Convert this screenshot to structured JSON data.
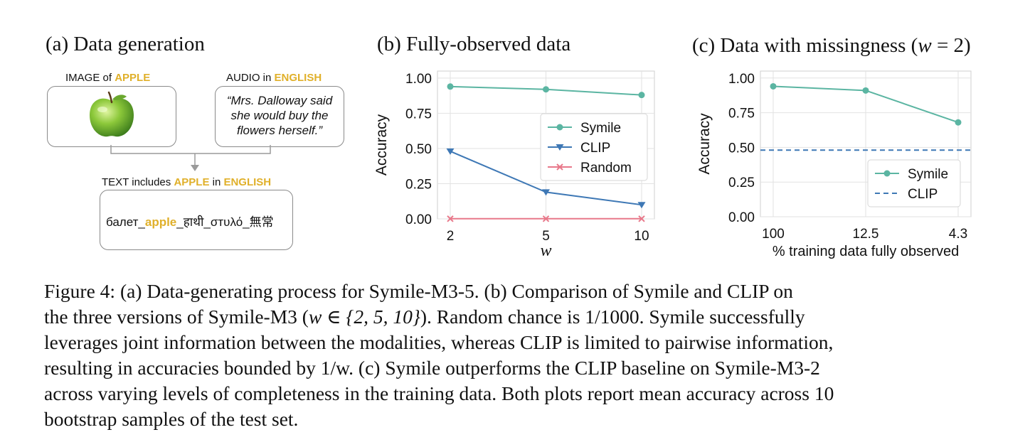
{
  "panel_a": {
    "title": "(a) Data generation",
    "image_label_prefix": "IMAGE of ",
    "image_label_highlight": "APPLE",
    "audio_label_prefix": "AUDIO in ",
    "audio_label_highlight": "ENGLISH",
    "quote_line1": "“Mrs. Dalloway said",
    "quote_line2": "she would buy the",
    "quote_line3": "flowers herself.”",
    "text_label_prefix": "TEXT includes ",
    "text_label_highlight1": "APPLE",
    "text_label_mid": " in ",
    "text_label_highlight2": "ENGLISH",
    "seq_part1": "балет_",
    "seq_highlight": "apple",
    "seq_part2": "_हाथी_σтυλό_無常",
    "colors": {
      "highlight": "#e0b02a",
      "border": "#8a8a8a"
    }
  },
  "panel_b": {
    "title": "(b) Fully-observed data"
  },
  "panel_c": {
    "title_prefix": "(c) Data with missingness (",
    "title_var": "w",
    "title_suffix": " = 2)"
  },
  "chart_data": [
    {
      "type": "line",
      "title": "(b) Fully-observed data",
      "xlabel": "w",
      "ylabel": "Accuracy",
      "categories": [
        "2",
        "5",
        "10"
      ],
      "ylim": [
        0,
        1.05
      ],
      "yticks": [
        "0.00",
        "0.25",
        "0.50",
        "0.75",
        "1.00"
      ],
      "grid": true,
      "legend_position": "center-right",
      "series": [
        {
          "name": "Symile",
          "values": [
            0.94,
            0.92,
            0.88
          ],
          "color": "#5bb5a2",
          "marker": "circle"
        },
        {
          "name": "CLIP",
          "values": [
            0.48,
            0.19,
            0.1
          ],
          "color": "#3e78b5",
          "marker": "triangle-down"
        },
        {
          "name": "Random",
          "values": [
            0.001,
            0.001,
            0.001
          ],
          "color": "#e8788a",
          "marker": "x"
        }
      ]
    },
    {
      "type": "line",
      "title": "(c) Data with missingness (w = 2)",
      "xlabel": "% training data fully observed",
      "ylabel": "Accuracy",
      "categories": [
        "100",
        "12.5",
        "4.3"
      ],
      "ylim": [
        0,
        1.05
      ],
      "yticks": [
        "0.00",
        "0.25",
        "0.50",
        "0.75",
        "1.00"
      ],
      "grid": true,
      "legend_position": "lower-right",
      "series": [
        {
          "name": "Symile",
          "values": [
            0.94,
            0.91,
            0.68
          ],
          "color": "#5bb5a2",
          "marker": "circle"
        },
        {
          "name": "CLIP",
          "values": [
            0.48,
            0.48,
            0.48
          ],
          "color": "#3e78b5",
          "marker": "none",
          "dashed": true
        }
      ]
    }
  ],
  "caption": {
    "l1a": "Figure 4: (a) Data-generating process for Symile-M3-5. (b) Comparison of Symile and CLIP on",
    "l2a": "the three versions of Symile-M3 (",
    "l2math": "w ∈ {2, 5, 10}",
    "l2b": "). Random chance is ",
    "l2frac": "1/1000",
    "l2c": ". Symile successfully",
    "l3": "leverages joint information between the modalities, whereas CLIP is limited to pairwise information,",
    "l4a": "resulting in accuracies bounded by ",
    "l4frac": "1/w",
    "l4b": ". (c) Symile outperforms the CLIP baseline on Symile-M3-2",
    "l5": "across varying levels of completeness in the training data. Both plots report mean accuracy across 10",
    "l6": "bootstrap samples of the test set."
  }
}
